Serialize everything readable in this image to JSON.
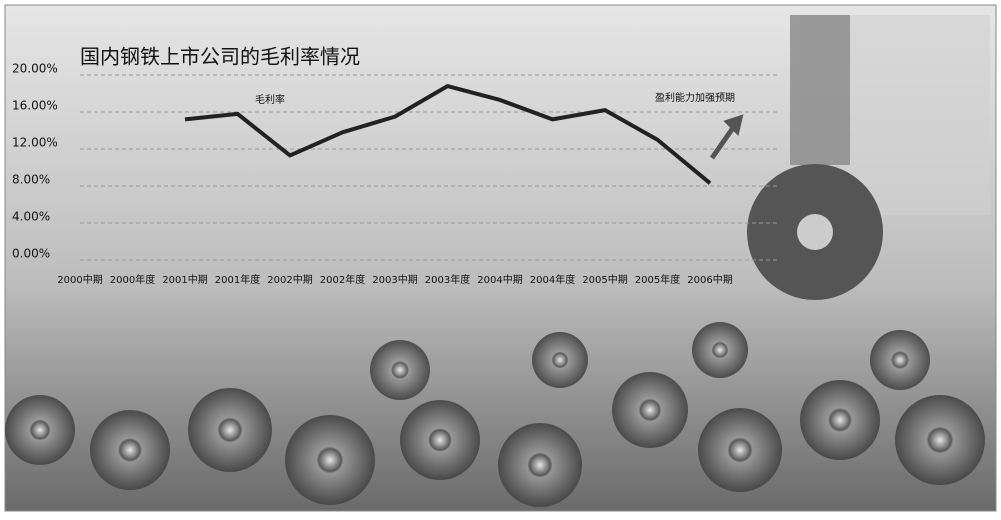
{
  "chart_data": {
    "type": "line",
    "title": "国内钢铁上市公司的毛利率情况",
    "categories": [
      "2000中期",
      "2000年度",
      "2001中期",
      "2001年度",
      "2002中期",
      "2002年度",
      "2003中期",
      "2003年度",
      "2004中期",
      "2004年度",
      "2005中期",
      "2005年度",
      "2006中期"
    ],
    "series": [
      {
        "name": "毛利率",
        "color": "#222222",
        "values": [
          null,
          null,
          15.2,
          15.8,
          11.3,
          13.8,
          15.5,
          18.8,
          17.3,
          15.2,
          16.2,
          13,
          8.3
        ]
      }
    ],
    "ylim": [
      0,
      20
    ],
    "yticks": [
      {
        "value": 0,
        "label": "0.00%"
      },
      {
        "value": 4,
        "label": "4.00%"
      },
      {
        "value": 8,
        "label": "8.00%"
      },
      {
        "value": 12,
        "label": "12.00%"
      },
      {
        "value": 16,
        "label": "16.00%"
      },
      {
        "value": 20,
        "label": "20.00%"
      }
    ],
    "annotations": [
      "盈利能力加强预期"
    ],
    "grid": true
  }
}
